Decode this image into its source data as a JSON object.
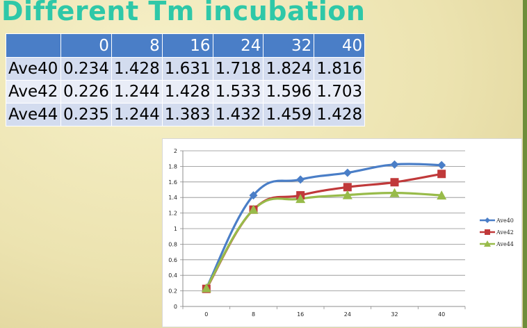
{
  "slide": {
    "title": "Different Tm incubation"
  },
  "table": {
    "headers": [
      "",
      "0",
      "8",
      "16",
      "24",
      "32",
      "40"
    ],
    "rows": [
      {
        "label": "Ave40",
        "cells": [
          "0.234",
          "1.428",
          "1.631",
          "1.718",
          "1.824",
          "1.816"
        ]
      },
      {
        "label": "Ave42",
        "cells": [
          "0.226",
          "1.244",
          "1.428",
          "1.533",
          "1.596",
          "1.703"
        ]
      },
      {
        "label": "Ave44",
        "cells": [
          "0.235",
          "1.244",
          "1.383",
          "1.432",
          "1.459",
          "1.428"
        ]
      }
    ]
  },
  "chart_data": {
    "type": "line",
    "title": "",
    "xlabel": "",
    "ylabel": "",
    "categories": [
      "0",
      "8",
      "16",
      "24",
      "32",
      "40"
    ],
    "ylim": [
      0,
      2
    ],
    "yticks": [
      "0",
      "0.2",
      "0.4",
      "0.6",
      "0.8",
      "1",
      "1.2",
      "1.4",
      "1.6",
      "1.8",
      "2"
    ],
    "grid": true,
    "legend_position": "right",
    "series": [
      {
        "name": "Ave40",
        "color": "#4a7ec7",
        "marker": "diamond",
        "values": [
          0.234,
          1.428,
          1.631,
          1.718,
          1.824,
          1.816
        ]
      },
      {
        "name": "Ave42",
        "color": "#c0393a",
        "marker": "square",
        "values": [
          0.226,
          1.244,
          1.428,
          1.533,
          1.596,
          1.703
        ]
      },
      {
        "name": "Ave44",
        "color": "#98bb4a",
        "marker": "triangle",
        "values": [
          0.235,
          1.244,
          1.383,
          1.432,
          1.459,
          1.428
        ]
      }
    ]
  }
}
